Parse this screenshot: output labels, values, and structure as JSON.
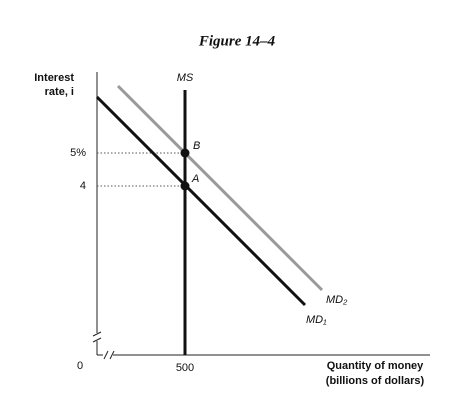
{
  "title": "Figure 14–4",
  "y_axis": {
    "label_lines": [
      "Interest",
      "rate, i"
    ],
    "ticks": [
      "5%",
      "4"
    ],
    "origin": "0"
  },
  "x_axis": {
    "label_lines": [
      "Quantity of money",
      "(billions of dollars)"
    ],
    "ticks": [
      "500"
    ]
  },
  "curves": {
    "ms": "MS",
    "md1": "MD₁",
    "md2": "MD₂"
  },
  "points": {
    "a": "A",
    "b": "B"
  }
}
